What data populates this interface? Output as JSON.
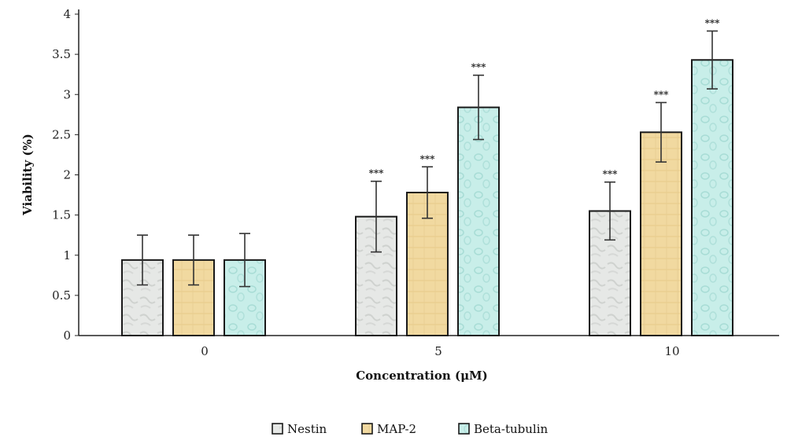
{
  "chart_data": {
    "type": "bar",
    "xlabel": "Concentration (μM)",
    "ylabel": "Viability (%)",
    "ylim": [
      0,
      4
    ],
    "yticks": [
      "0",
      "0.5",
      "1",
      "1.5",
      "2",
      "2.5",
      "3",
      "3.5",
      "4"
    ],
    "categories": [
      "0",
      "5",
      "10"
    ],
    "grid": false,
    "legend_position": "bottom",
    "series": [
      {
        "name": "Nestin",
        "color": "#e4e6e4",
        "values": [
          0.94,
          1.48,
          1.55
        ],
        "errors": [
          0.31,
          0.44,
          0.36
        ],
        "significance": [
          "",
          "***",
          "***"
        ]
      },
      {
        "name": "MAP-2",
        "color": "#f0d9a2",
        "values": [
          0.94,
          1.78,
          2.53
        ],
        "errors": [
          0.31,
          0.32,
          0.37
        ],
        "significance": [
          "",
          "***",
          "***"
        ]
      },
      {
        "name": "Beta-tubulin",
        "color": "#c6ede8",
        "values": [
          0.94,
          2.84,
          3.43
        ],
        "errors": [
          0.33,
          0.4,
          0.36
        ],
        "significance": [
          "",
          "***",
          "***"
        ]
      }
    ]
  }
}
